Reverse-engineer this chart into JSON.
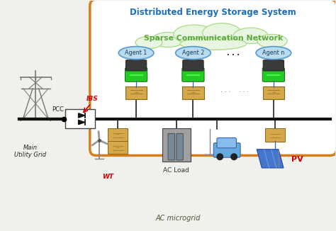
{
  "title_des": "Distributed Energy Storage System",
  "title_des_color": "#1a6fc4",
  "subtitle_scn": "Sparse Communication Network",
  "subtitle_scn_color": "#5aaa3a",
  "agents": [
    "Agent 1",
    "Agent 2",
    "Agent n"
  ],
  "ibs_label": "IBS",
  "ibs_color": "#cc0000",
  "pcc_label": "PCC",
  "pcc_color": "#222222",
  "wt_label": "WT",
  "wt_color": "#cc0000",
  "acload_label": "AC Load",
  "acload_color": "#333333",
  "pv_label": "PV",
  "pv_color": "#cc0000",
  "ac_microgrid_label": "AC microgrid",
  "ac_microgrid_color": "#555533",
  "main_grid_label": "Main\nUtility Grid",
  "main_grid_color": "#222222",
  "outer_box_color": "#d97c1a",
  "cloud_fill": "#e8f5e0",
  "cloud_edge": "#aada88",
  "agent_fill": "#b8dcf0",
  "agent_edge": "#5599cc",
  "bus_color": "#111111",
  "bg_color": "#f0f0ec"
}
